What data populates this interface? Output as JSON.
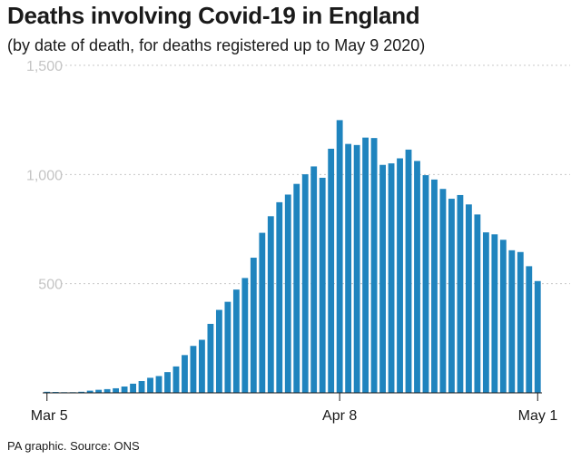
{
  "header": {
    "title": "Deaths involving Covid-19 in England",
    "subtitle": "(by date of death, for deaths registered up to May 9 2020)"
  },
  "footer": {
    "source": "PA graphic. Source: ONS"
  },
  "colors": {
    "bar": "#1f84be",
    "grid": "#c8c8c8",
    "axis": "#1a1a1a",
    "tick_text": "#c4c4c4"
  },
  "chart_data": {
    "type": "bar",
    "title": "Deaths involving Covid-19 in England",
    "subtitle": "(by date of death, for deaths registered up to May 9 2020)",
    "xlabel": "",
    "ylabel": "",
    "ylim": [
      0,
      1500
    ],
    "grid": true,
    "yticks": [
      500,
      1000,
      1500
    ],
    "ytick_labels": [
      "500",
      "1,000",
      "1,500"
    ],
    "xtick_labels": [
      "Mar 5",
      "Apr 8",
      "May 1"
    ],
    "x_start": "2020-03-05",
    "x_end": "2020-05-01",
    "values": [
      5,
      4,
      3,
      3,
      5,
      10,
      14,
      17,
      21,
      29,
      42,
      54,
      69,
      77,
      95,
      121,
      173,
      215,
      243,
      316,
      380,
      417,
      473,
      526,
      619,
      733,
      809,
      873,
      908,
      957,
      1001,
      1037,
      985,
      1118,
      1249,
      1140,
      1135,
      1169,
      1167,
      1044,
      1051,
      1074,
      1114,
      1062,
      997,
      977,
      934,
      889,
      906,
      863,
      817,
      735,
      726,
      701,
      653,
      645,
      580,
      512
    ]
  }
}
